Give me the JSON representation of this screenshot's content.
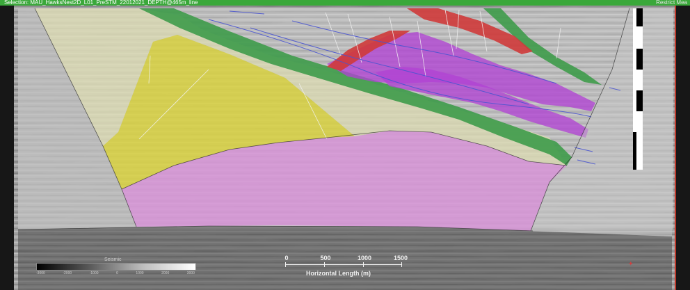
{
  "window": {
    "title": "Selection: MAU_HawksNest2D_L01_PreSTM_22012021_DEPTH@465m_line",
    "right_label": "Restrict Mea"
  },
  "colorbar": {
    "title": "Seismic",
    "ticks": [
      "-3000",
      "-2000",
      "-1000",
      "0",
      "1000",
      "2000",
      "3000"
    ]
  },
  "scalebar": {
    "labels": [
      "0",
      "500",
      "1000",
      "1500"
    ],
    "values": [
      0,
      500,
      1000,
      1500
    ],
    "title": "Horizontal Length (m)"
  },
  "layers": [
    {
      "name": "basement",
      "color": "#d892d8"
    },
    {
      "name": "yellow-unit",
      "color": "#d9d23a"
    },
    {
      "name": "tan-unit",
      "color": "#dedcb2"
    },
    {
      "name": "green-horizon",
      "color": "#3e9b4a"
    },
    {
      "name": "purple-unit",
      "color": "#b143d3"
    },
    {
      "name": "red-horizon",
      "color": "#cf3a3a"
    }
  ]
}
